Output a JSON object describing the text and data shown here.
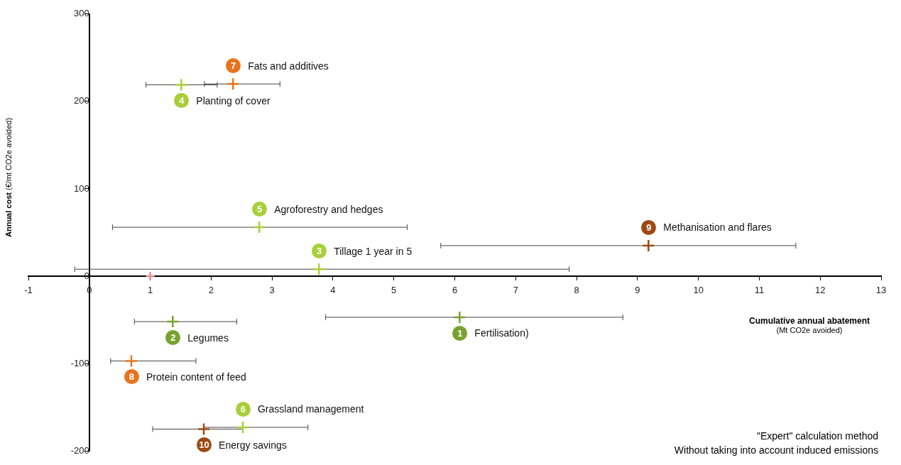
{
  "chart_data": {
    "type": "scatter",
    "xlabel": "Cumulative annual abatement\n(Mt CO2e avoided)",
    "ylabel": "Annual cost (€/mt CO2e avoided)",
    "xlim": [
      -1,
      13
    ],
    "xticks": [
      -1,
      0,
      1,
      2,
      3,
      4,
      5,
      6,
      7,
      8,
      9,
      10,
      11,
      12,
      13
    ],
    "ylim": [
      -200,
      300
    ],
    "yticks": [
      -200,
      -100,
      0,
      100,
      200,
      300
    ],
    "grid": false,
    "legend": false,
    "marker": "cross",
    "series": [
      {
        "name": "1 Fertilisation)",
        "color": "#78a22f",
        "x": [
          6.08
        ],
        "values": [
          -47
        ],
        "xerrors": [
          [
            3.88,
            8.76
          ]
        ]
      },
      {
        "name": "2 Legumes",
        "color": "#78a22f",
        "x": [
          1.37
        ],
        "values": [
          -52
        ],
        "xerrors": [
          [
            0.74,
            2.42
          ]
        ]
      },
      {
        "name": "3 Tillage 1 year in 5",
        "color": "#a8cf3a",
        "x": [
          3.77
        ],
        "values": [
          8
        ],
        "xerrors": [
          [
            -0.24,
            7.88
          ]
        ]
      },
      {
        "name": "4 Planting of cover",
        "color": "#a8cf3a",
        "x": [
          1.51
        ],
        "values": [
          219
        ],
        "xerrors": [
          [
            0.93,
            2.1
          ]
        ]
      },
      {
        "name": "5 Agroforestry and hedges",
        "color": "#a8cf3a",
        "x": [
          2.79
        ],
        "values": [
          56
        ],
        "xerrors": [
          [
            0.38,
            5.22
          ]
        ]
      },
      {
        "name": "6 Grassland management",
        "color": "#a8cf3a",
        "x": [
          2.52
        ],
        "values": [
          -173
        ],
        "xerrors": [
          [
            1.88,
            3.59
          ]
        ]
      },
      {
        "name": "7 Fats and additives",
        "color": "#e8731e",
        "x": [
          2.36
        ],
        "values": [
          220
        ],
        "xerrors": [
          [
            1.89,
            3.13
          ]
        ]
      },
      {
        "name": "8 Protein content of feed",
        "color": "#e8731e",
        "x": [
          0.69
        ],
        "values": [
          -97
        ],
        "xerrors": [
          [
            0.35,
            1.75
          ]
        ]
      },
      {
        "name": "9 Methanisation and flares",
        "color": "#9c4a12",
        "x": [
          9.18
        ],
        "values": [
          35
        ],
        "xerrors": [
          [
            5.77,
            11.6
          ]
        ]
      },
      {
        "name": "10 Energy savings",
        "color": "#9c4a12",
        "x": [
          1.88
        ],
        "values": [
          -175
        ],
        "xerrors": [
          [
            1.04,
            2.52
          ]
        ]
      },
      {
        "color": "#e09090",
        "x": [
          1
        ],
        "values": [
          0
        ]
      }
    ],
    "annotations": [
      "\"Expert\" calculation method",
      "Without taking into account induced emissions"
    ]
  }
}
